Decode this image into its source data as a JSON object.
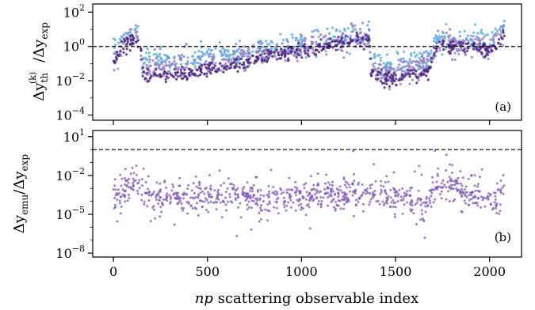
{
  "chart_data": [
    {
      "panel": "a",
      "type": "scatter",
      "panel_tag": "(a)",
      "ylabel": "Δy_th^(k) / Δy_exp",
      "ylabel_parts": {
        "base": "Δy",
        "sub": "th",
        "sup": "(k)",
        "slash": "/",
        "base2": "Δy",
        "sub2": "exp"
      },
      "y_scale": "log",
      "ylim": [
        5e-05,
        300
      ],
      "y_ticks": [
        {
          "value": 0.0001,
          "label_base": "10",
          "label_exp": "−4"
        },
        {
          "value": 0.01,
          "label_base": "10",
          "label_exp": "−2"
        },
        {
          "value": 1,
          "label_base": "10",
          "label_exp": "0"
        },
        {
          "value": 100,
          "label_base": "10",
          "label_exp": "2"
        }
      ],
      "reference_line": {
        "y": 1,
        "style": "dashed"
      },
      "series": [
        {
          "color": "#5aaee8",
          "x": [
            0,
            50,
            100,
            140,
            160,
            250,
            400,
            600,
            800,
            1000,
            1200,
            1360,
            1370,
            1450,
            1600,
            1680,
            1720,
            1850,
            1950,
            2000,
            2080
          ],
          "y": [
            0.3,
            2.5,
            6,
            4,
            0.12,
            0.15,
            0.2,
            0.3,
            0.6,
            1.5,
            3,
            6,
            0.15,
            0.07,
            0.1,
            0.2,
            2.2,
            2.0,
            1.8,
            2.5,
            20
          ],
          "spread_dex": 0.35
        },
        {
          "color": "#9a7fc6",
          "x": [
            0,
            50,
            100,
            140,
            160,
            250,
            400,
            600,
            800,
            1000,
            1200,
            1360,
            1370,
            1450,
            1600,
            1680,
            1720,
            1850,
            1950,
            2000,
            2080
          ],
          "y": [
            0.15,
            1.5,
            3,
            2.5,
            0.05,
            0.06,
            0.08,
            0.12,
            0.3,
            0.8,
            2,
            4,
            0.06,
            0.03,
            0.05,
            0.08,
            1.5,
            1.4,
            1.2,
            0.9,
            8
          ],
          "spread_dex": 0.35
        },
        {
          "color": "#4b2580",
          "x": [
            0,
            50,
            100,
            140,
            160,
            250,
            400,
            600,
            800,
            1000,
            1200,
            1360,
            1370,
            1450,
            1600,
            1680,
            1720,
            1850,
            1950,
            2000,
            2080
          ],
          "y": [
            0.1,
            1.2,
            2.5,
            2,
            0.015,
            0.02,
            0.03,
            0.06,
            0.2,
            0.6,
            1.5,
            3,
            0.03,
            0.012,
            0.02,
            0.04,
            1.2,
            1.0,
            0.8,
            0.5,
            4
          ],
          "spread_dex": 0.2
        }
      ]
    },
    {
      "panel": "b",
      "type": "scatter",
      "panel_tag": "(b)",
      "ylabel": "Δy_emu / Δy_exp",
      "ylabel_parts": {
        "base": "Δy",
        "sub": "emu",
        "slash": "/",
        "base2": "Δy",
        "sub2": "exp"
      },
      "y_scale": "log",
      "ylim": [
        5e-09,
        30
      ],
      "y_ticks": [
        {
          "value": 1e-08,
          "label_base": "10",
          "label_exp": "−8"
        },
        {
          "value": 1e-05,
          "label_base": "10",
          "label_exp": "−5"
        },
        {
          "value": 0.01,
          "label_base": "10",
          "label_exp": "−2"
        },
        {
          "value": 10,
          "label_base": "10",
          "label_exp": "1"
        }
      ],
      "reference_line": {
        "y": 1,
        "style": "dashed"
      },
      "series": [
        {
          "color": "#7e57b8",
          "x": [
            0,
            80,
            100,
            160,
            300,
            500,
            700,
            900,
            1100,
            1300,
            1360,
            1380,
            1450,
            1550,
            1650,
            1700,
            1750,
            1850,
            1950,
            2050,
            2080
          ],
          "y": [
            0.0003,
            0.0006,
            0.005,
            0.0003,
            0.0002,
            0.00025,
            0.0002,
            0.0003,
            0.0003,
            0.0004,
            0.0005,
            0.0004,
            0.0003,
            0.0002,
            3e-05,
            0.001,
            0.0015,
            0.001,
            0.0002,
            5e-05,
            0.002
          ],
          "spread_dex": 0.6
        }
      ]
    }
  ],
  "shared_x": {
    "xlabel_prefix": "np",
    "xlabel_suffix": " scattering observable index",
    "xlim": [
      -110,
      2170
    ],
    "x_ticks": [
      {
        "value": 0,
        "label": "0"
      },
      {
        "value": 500,
        "label": "500"
      },
      {
        "value": 1000,
        "label": "1000"
      },
      {
        "value": 1500,
        "label": "1500"
      },
      {
        "value": 2000,
        "label": "2000"
      }
    ]
  }
}
